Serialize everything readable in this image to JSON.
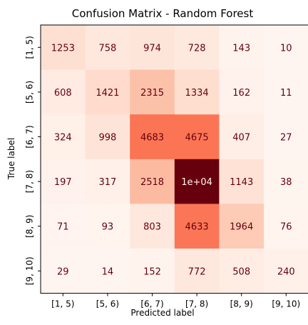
{
  "chart_data": {
    "type": "heatmap",
    "title": "Confusion Matrix - Random Forest",
    "xlabel": "Predicted label",
    "ylabel": "True label",
    "x_categories": [
      "[1, 5)",
      "[5, 6)",
      "[6, 7)",
      "[7, 8)",
      "[8, 9)",
      "[9, 10)"
    ],
    "y_categories": [
      "[1, 5)",
      "[5, 6)",
      "[6, 7)",
      "[7, 8)",
      "[8, 9)",
      "[9, 10)"
    ],
    "values": [
      [
        1253,
        758,
        974,
        728,
        143,
        10
      ],
      [
        608,
        1421,
        2315,
        1334,
        162,
        11
      ],
      [
        324,
        998,
        4683,
        4675,
        407,
        27
      ],
      [
        197,
        317,
        2518,
        10000,
        1143,
        38
      ],
      [
        71,
        93,
        803,
        4633,
        1964,
        76
      ],
      [
        29,
        14,
        152,
        772,
        508,
        240
      ]
    ],
    "labels": [
      [
        "1253",
        "758",
        "974",
        "728",
        "143",
        "10"
      ],
      [
        "608",
        "1421",
        "2315",
        "1334",
        "162",
        "11"
      ],
      [
        "324",
        "998",
        "4683",
        "4675",
        "407",
        "27"
      ],
      [
        "197",
        "317",
        "2518",
        "1e+04",
        "1143",
        "38"
      ],
      [
        "71",
        "93",
        "803",
        "4633",
        "1964",
        "76"
      ],
      [
        "29",
        "14",
        "152",
        "772",
        "508",
        "240"
      ]
    ],
    "colormap": "Reds",
    "colorbar": false,
    "grid": false,
    "colors": {
      "low": "#fff5f0",
      "high": "#67000d",
      "text_dark": "#67000d",
      "text_light": "#fff5f0"
    }
  }
}
